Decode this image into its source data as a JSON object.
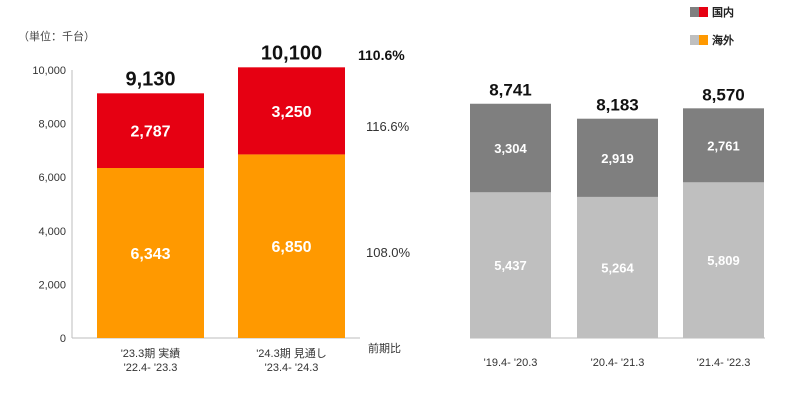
{
  "unit_label": "（単位：千台）",
  "ratio_header": "前期比",
  "legend": {
    "domestic": {
      "label": "国内",
      "colors": [
        "#7f7f7f",
        "#e60012"
      ]
    },
    "overseas": {
      "label": "海外",
      "colors": [
        "#bfbfbf",
        "#ff9900"
      ]
    }
  },
  "chart_data": [
    {
      "type": "bar",
      "stacked": true,
      "categories": [
        [
          "'23.3期 実績",
          "'22.4- '23.3"
        ],
        [
          "'24.3期 見通し",
          "'23.4- '24.3"
        ]
      ],
      "series": [
        {
          "name": "海外",
          "values": [
            6343,
            6850
          ],
          "color": "#ff9900"
        },
        {
          "name": "国内",
          "values": [
            2787,
            3250
          ],
          "color": "#e60012"
        }
      ],
      "totals": [
        "9,130",
        "10,100"
      ],
      "value_labels": [
        [
          "6,343",
          "6,850"
        ],
        [
          "2,787",
          "3,250"
        ]
      ],
      "ratios": {
        "total": "110.6%",
        "domestic": "116.6%",
        "overseas": "108.0%"
      },
      "yticks": [
        "0",
        "2,000",
        "4,000",
        "6,000",
        "8,000",
        "10,000"
      ],
      "ylim": [
        0,
        10000
      ]
    },
    {
      "type": "bar",
      "stacked": true,
      "categories": [
        "'19.4- '20.3",
        "'20.4- '21.3",
        "'21.4- '22.3"
      ],
      "series": [
        {
          "name": "海外",
          "values": [
            5437,
            5264,
            5809
          ],
          "color": "#bfbfbf"
        },
        {
          "name": "国内",
          "values": [
            3304,
            2919,
            2761
          ],
          "color": "#7f7f7f"
        }
      ],
      "totals": [
        "8,741",
        "8,183",
        "8,570"
      ],
      "value_labels": [
        [
          "5,437",
          "5,264",
          "5,809"
        ],
        [
          "3,304",
          "2,919",
          "2,761"
        ]
      ],
      "ylim": [
        0,
        10000
      ]
    }
  ]
}
